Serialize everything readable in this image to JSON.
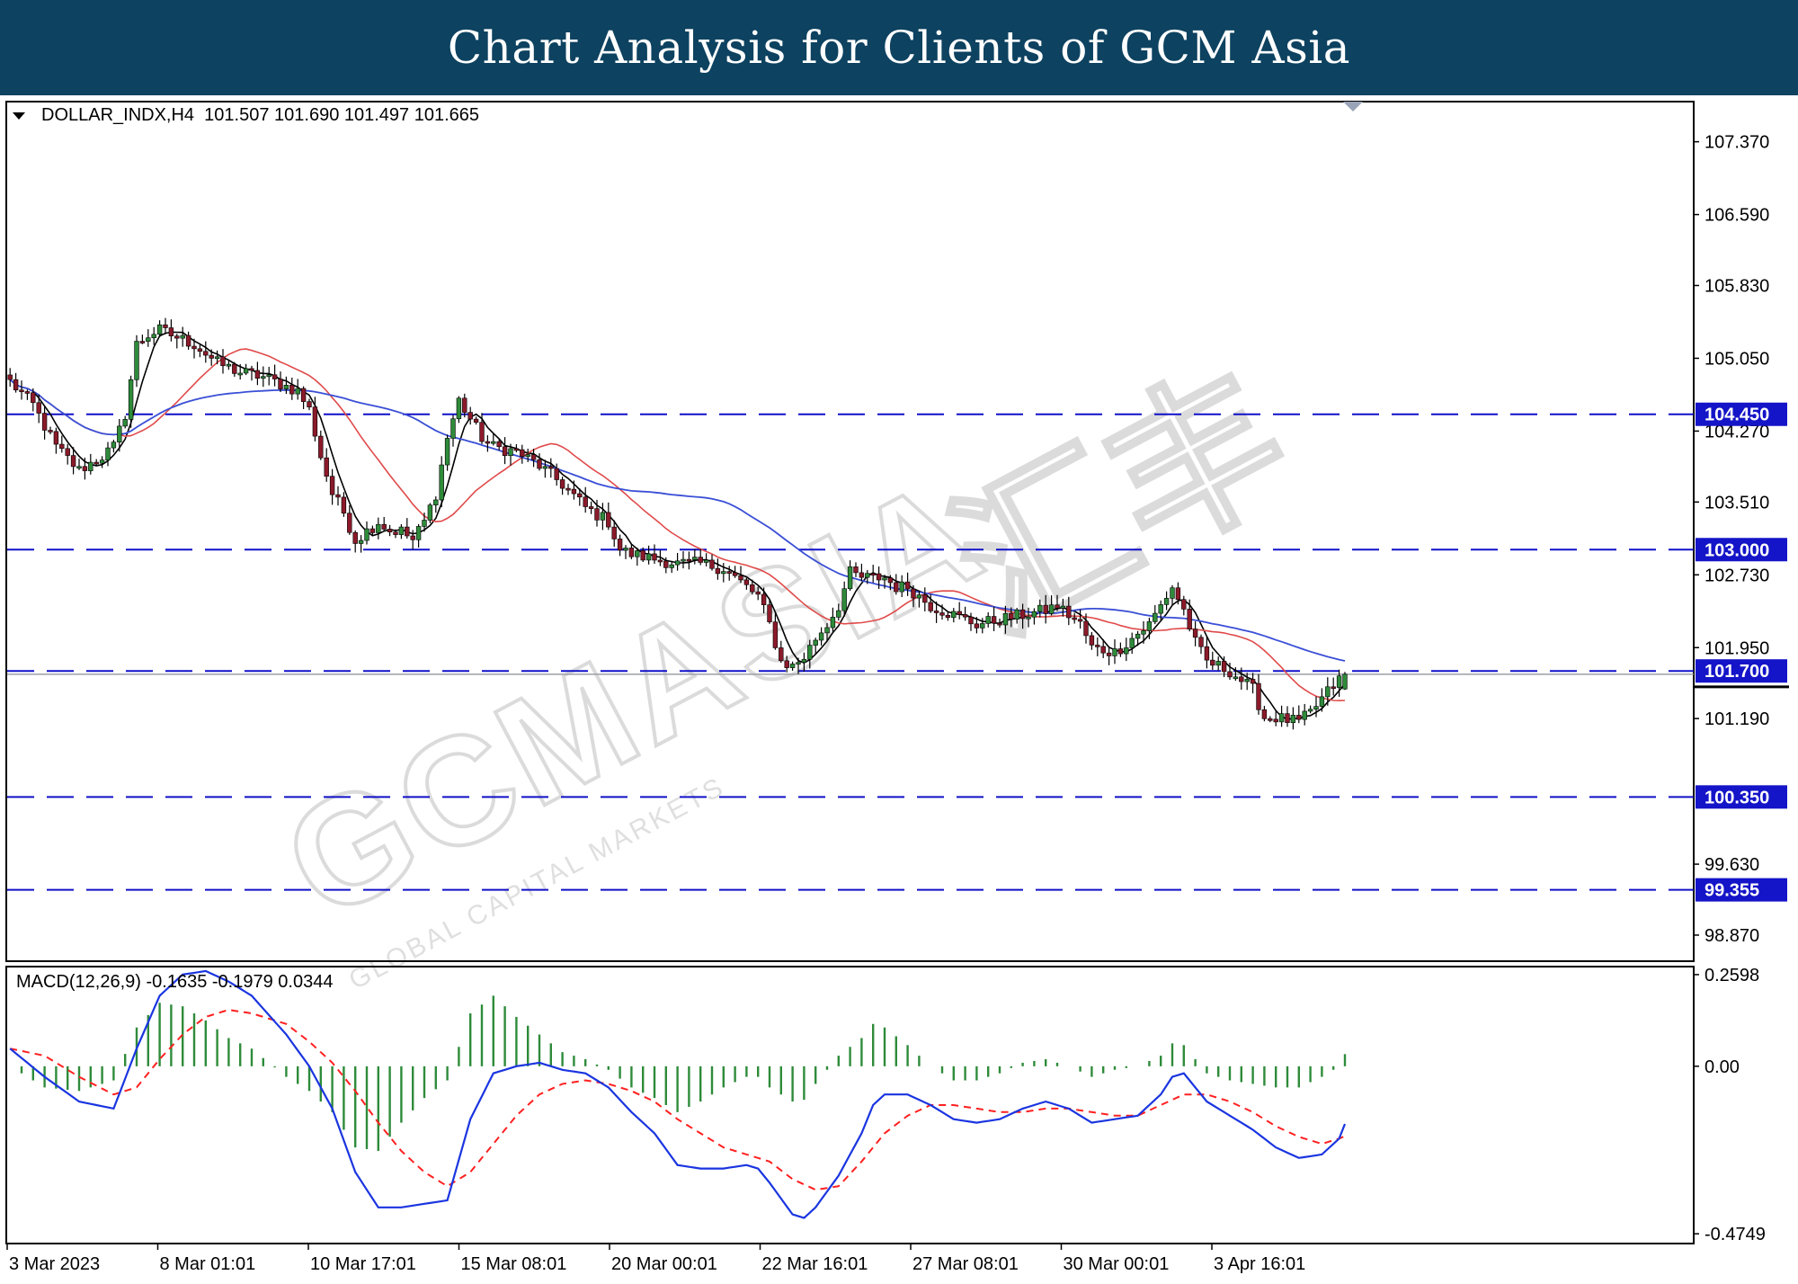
{
  "banner": {
    "title": "Chart Analysis for Clients of GCM Asia"
  },
  "watermark": {
    "brand": "GCMASIA",
    "chinese": "汇丰",
    "tagline": "GLOBAL CAPITAL MARKETS"
  },
  "colors": {
    "banner_bg": "#0d4260",
    "bull": "#2e8b3a",
    "bear": "#8b1a2a",
    "ma_fast": "#000000",
    "ma_mid": "#e04a4a",
    "ma_slow": "#3a4fd6",
    "support_line": "#1010c8",
    "label_bg": "#1414c8",
    "macd_line": "#1a35e0",
    "macd_signal": "#ff2020",
    "macd_hist": "#2e8b3a"
  },
  "chart_data": {
    "type": "candlestick",
    "symbol_header": "DOLLAR_INDX,H4  101.507 101.690 101.497 101.665",
    "ohlc_last": {
      "open": 101.507,
      "high": 101.69,
      "low": 101.497,
      "close": 101.665
    },
    "ylim": [
      98.6,
      107.8
    ],
    "price_ticks": [
      "107.370",
      "106.590",
      "105.830",
      "105.050",
      "104.270",
      "103.510",
      "102.730",
      "101.950",
      "101.190",
      "99.630",
      "98.870"
    ],
    "time_labels": [
      "3 Mar 2023",
      "8 Mar 01:01",
      "10 Mar 17:01",
      "15 Mar 08:01",
      "20 Mar 00:01",
      "22 Mar 16:01",
      "27 Mar 08:01",
      "30 Mar 00:01",
      "3 Apr 16:01"
    ],
    "levels": [
      {
        "value": 104.45,
        "label": "104.450"
      },
      {
        "value": 103.0,
        "label": "103.000"
      },
      {
        "value": 101.7,
        "label": "101.700"
      },
      {
        "value": 100.35,
        "label": "100.350"
      },
      {
        "value": 99.355,
        "label": "99.355"
      }
    ],
    "current_price": 101.665,
    "close_anchors": [
      [
        0,
        104.8
      ],
      [
        4,
        104.55
      ],
      [
        8,
        104.1
      ],
      [
        12,
        103.85
      ],
      [
        16,
        104.0
      ],
      [
        18,
        104.1
      ],
      [
        20,
        104.45
      ],
      [
        22,
        105.2
      ],
      [
        24,
        105.3
      ],
      [
        26,
        105.35
      ],
      [
        28,
        105.3
      ],
      [
        32,
        105.2
      ],
      [
        36,
        105.0
      ],
      [
        40,
        104.9
      ],
      [
        44,
        104.85
      ],
      [
        48,
        104.75
      ],
      [
        50,
        104.7
      ],
      [
        52,
        104.5
      ],
      [
        54,
        104.0
      ],
      [
        56,
        103.6
      ],
      [
        58,
        103.4
      ],
      [
        60,
        103.1
      ],
      [
        62,
        103.2
      ],
      [
        64,
        103.3
      ],
      [
        66,
        103.2
      ],
      [
        68,
        103.2
      ],
      [
        70,
        103.1
      ],
      [
        72,
        103.3
      ],
      [
        74,
        103.6
      ],
      [
        76,
        104.2
      ],
      [
        78,
        104.6
      ],
      [
        80,
        104.4
      ],
      [
        82,
        104.2
      ],
      [
        84,
        104.1
      ],
      [
        88,
        104.05
      ],
      [
        92,
        103.9
      ],
      [
        96,
        103.7
      ],
      [
        100,
        103.45
      ],
      [
        104,
        103.3
      ],
      [
        106,
        103.0
      ],
      [
        108,
        102.95
      ],
      [
        112,
        102.9
      ],
      [
        116,
        102.85
      ],
      [
        120,
        102.85
      ],
      [
        124,
        102.8
      ],
      [
        126,
        102.7
      ],
      [
        128,
        102.6
      ],
      [
        130,
        102.5
      ],
      [
        132,
        102.2
      ],
      [
        134,
        101.8
      ],
      [
        136,
        101.75
      ],
      [
        138,
        101.85
      ],
      [
        140,
        102.05
      ],
      [
        142,
        102.2
      ],
      [
        144,
        102.4
      ],
      [
        146,
        102.75
      ],
      [
        148,
        102.7
      ],
      [
        152,
        102.7
      ],
      [
        154,
        102.6
      ],
      [
        156,
        102.6
      ],
      [
        158,
        102.5
      ],
      [
        160,
        102.4
      ],
      [
        164,
        102.3
      ],
      [
        168,
        102.2
      ],
      [
        172,
        102.25
      ],
      [
        176,
        102.3
      ],
      [
        180,
        102.35
      ],
      [
        182,
        102.4
      ],
      [
        186,
        102.2
      ],
      [
        188,
        101.95
      ],
      [
        192,
        101.9
      ],
      [
        194,
        102.0
      ],
      [
        196,
        102.1
      ],
      [
        198,
        102.2
      ],
      [
        200,
        102.4
      ],
      [
        202,
        102.6
      ],
      [
        204,
        102.35
      ],
      [
        206,
        102.0
      ],
      [
        208,
        101.8
      ],
      [
        210,
        101.75
      ],
      [
        212,
        101.7
      ],
      [
        214,
        101.6
      ],
      [
        216,
        101.5
      ],
      [
        218,
        101.2
      ],
      [
        220,
        101.2
      ],
      [
        224,
        101.15
      ],
      [
        226,
        101.25
      ],
      [
        228,
        101.4
      ],
      [
        230,
        101.55
      ],
      [
        232,
        101.665
      ]
    ],
    "macd": {
      "label": "MACD(12,26,9) -0.1635 -0.1979 0.0344",
      "params": [
        12,
        26,
        9
      ],
      "main": -0.1635,
      "signal": -0.1979,
      "hist": 0.0344,
      "ylim": [
        -0.5,
        0.28
      ],
      "ticks": [
        "0.2598",
        "0.00",
        "-0.4749"
      ],
      "main_anchors": [
        [
          0,
          0.05
        ],
        [
          6,
          -0.03
        ],
        [
          12,
          -0.1
        ],
        [
          18,
          -0.12
        ],
        [
          22,
          0.05
        ],
        [
          26,
          0.2
        ],
        [
          30,
          0.26
        ],
        [
          34,
          0.27
        ],
        [
          38,
          0.24
        ],
        [
          42,
          0.2
        ],
        [
          48,
          0.09
        ],
        [
          52,
          0.0
        ],
        [
          56,
          -0.12
        ],
        [
          60,
          -0.3
        ],
        [
          64,
          -0.4
        ],
        [
          68,
          -0.4
        ],
        [
          72,
          -0.39
        ],
        [
          76,
          -0.38
        ],
        [
          80,
          -0.15
        ],
        [
          84,
          -0.02
        ],
        [
          88,
          0.0
        ],
        [
          92,
          0.01
        ],
        [
          96,
          -0.01
        ],
        [
          100,
          -0.02
        ],
        [
          104,
          -0.06
        ],
        [
          108,
          -0.13
        ],
        [
          112,
          -0.19
        ],
        [
          116,
          -0.28
        ],
        [
          120,
          -0.29
        ],
        [
          124,
          -0.29
        ],
        [
          128,
          -0.28
        ],
        [
          130,
          -0.29
        ],
        [
          132,
          -0.33
        ],
        [
          136,
          -0.42
        ],
        [
          138,
          -0.43
        ],
        [
          140,
          -0.4
        ],
        [
          144,
          -0.31
        ],
        [
          148,
          -0.19
        ],
        [
          150,
          -0.11
        ],
        [
          152,
          -0.08
        ],
        [
          156,
          -0.08
        ],
        [
          160,
          -0.11
        ],
        [
          164,
          -0.15
        ],
        [
          168,
          -0.16
        ],
        [
          172,
          -0.15
        ],
        [
          176,
          -0.12
        ],
        [
          180,
          -0.1
        ],
        [
          184,
          -0.12
        ],
        [
          188,
          -0.16
        ],
        [
          192,
          -0.15
        ],
        [
          196,
          -0.14
        ],
        [
          200,
          -0.08
        ],
        [
          202,
          -0.03
        ],
        [
          204,
          -0.02
        ],
        [
          206,
          -0.06
        ],
        [
          208,
          -0.1
        ],
        [
          212,
          -0.14
        ],
        [
          216,
          -0.18
        ],
        [
          220,
          -0.23
        ],
        [
          224,
          -0.26
        ],
        [
          228,
          -0.25
        ],
        [
          232,
          -0.19
        ]
      ],
      "signal_anchors": [
        [
          0,
          0.05
        ],
        [
          6,
          0.03
        ],
        [
          12,
          -0.03
        ],
        [
          18,
          -0.08
        ],
        [
          22,
          -0.06
        ],
        [
          26,
          0.02
        ],
        [
          30,
          0.09
        ],
        [
          34,
          0.14
        ],
        [
          38,
          0.16
        ],
        [
          42,
          0.15
        ],
        [
          48,
          0.12
        ],
        [
          52,
          0.07
        ],
        [
          56,
          0.01
        ],
        [
          60,
          -0.07
        ],
        [
          64,
          -0.16
        ],
        [
          68,
          -0.24
        ],
        [
          72,
          -0.3
        ],
        [
          76,
          -0.34
        ],
        [
          80,
          -0.3
        ],
        [
          84,
          -0.22
        ],
        [
          88,
          -0.14
        ],
        [
          92,
          -0.08
        ],
        [
          96,
          -0.05
        ],
        [
          100,
          -0.04
        ],
        [
          104,
          -0.05
        ],
        [
          108,
          -0.07
        ],
        [
          112,
          -0.1
        ],
        [
          116,
          -0.15
        ],
        [
          120,
          -0.19
        ],
        [
          124,
          -0.23
        ],
        [
          128,
          -0.25
        ],
        [
          132,
          -0.27
        ],
        [
          136,
          -0.32
        ],
        [
          140,
          -0.35
        ],
        [
          144,
          -0.34
        ],
        [
          148,
          -0.27
        ],
        [
          152,
          -0.19
        ],
        [
          156,
          -0.14
        ],
        [
          160,
          -0.11
        ],
        [
          164,
          -0.11
        ],
        [
          168,
          -0.12
        ],
        [
          172,
          -0.13
        ],
        [
          176,
          -0.13
        ],
        [
          180,
          -0.12
        ],
        [
          184,
          -0.12
        ],
        [
          188,
          -0.13
        ],
        [
          192,
          -0.14
        ],
        [
          196,
          -0.14
        ],
        [
          200,
          -0.11
        ],
        [
          204,
          -0.08
        ],
        [
          208,
          -0.08
        ],
        [
          212,
          -0.1
        ],
        [
          216,
          -0.13
        ],
        [
          220,
          -0.17
        ],
        [
          224,
          -0.2
        ],
        [
          228,
          -0.22
        ],
        [
          232,
          -0.2
        ]
      ]
    }
  }
}
